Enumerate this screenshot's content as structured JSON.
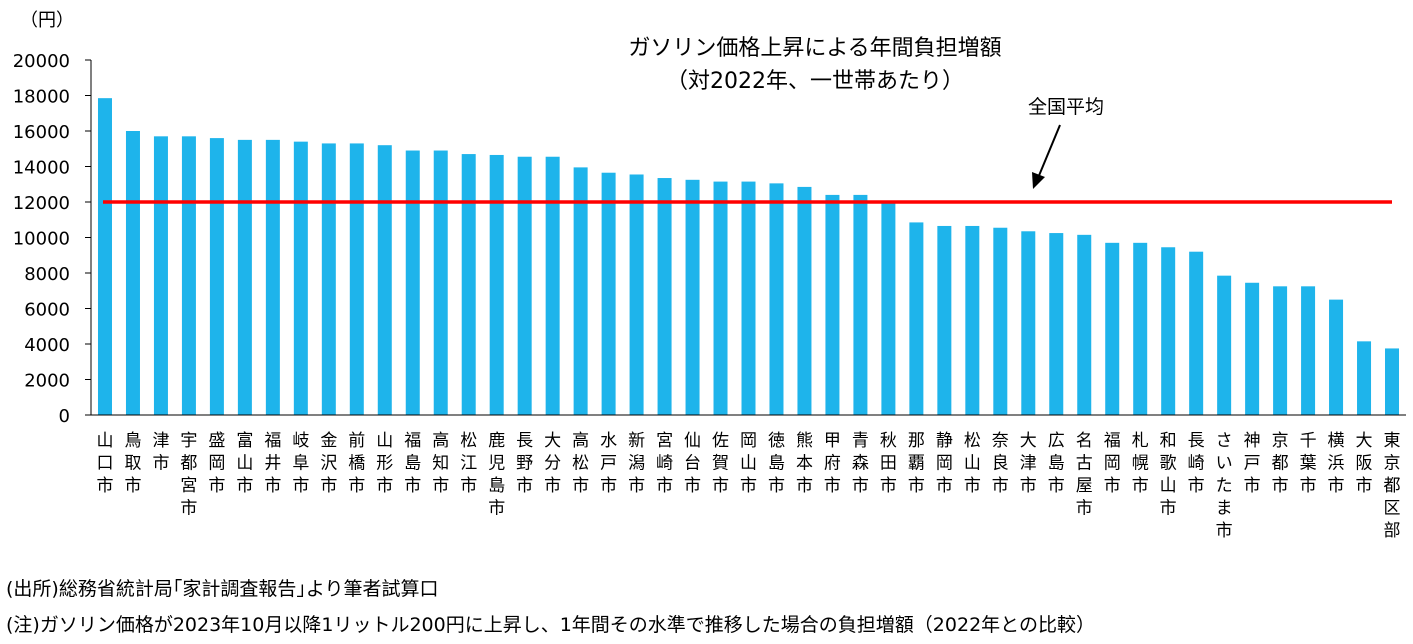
{
  "chart_data": {
    "type": "bar",
    "title": "ガソリン価格上昇による年間負担増額",
    "subtitle": "（対2022年、一世帯あたり）",
    "unit_label": "（円）",
    "ylim": [
      0,
      20000
    ],
    "yticks": [
      0,
      2000,
      4000,
      6000,
      8000,
      10000,
      12000,
      14000,
      16000,
      18000,
      20000
    ],
    "categories": [
      "山口市",
      "鳥取市",
      "津市",
      "宇都宮市",
      "盛岡市",
      "富山市",
      "福井市",
      "岐阜市",
      "金沢市",
      "前橋市",
      "山形市",
      "福島市",
      "高知市",
      "松江市",
      "鹿児島市",
      "長野市",
      "大分市",
      "高松市",
      "水戸市",
      "新潟市",
      "宮崎市",
      "仙台市",
      "佐賀市",
      "岡山市",
      "徳島市",
      "熊本市",
      "甲府市",
      "青森市",
      "秋田市",
      "那覇市",
      "静岡市",
      "松山市",
      "奈良市",
      "大津市",
      "広島市",
      "名古屋市",
      "福岡市",
      "札幌市",
      "和歌山市",
      "長崎市",
      "さいたま市",
      "神戸市",
      "京都市",
      "千葉市",
      "横浜市",
      "大阪市",
      "東京都区部"
    ],
    "values": [
      17850,
      16000,
      15700,
      15700,
      15600,
      15500,
      15500,
      15400,
      15300,
      15300,
      15200,
      14900,
      14900,
      14700,
      14650,
      14550,
      14550,
      13950,
      13650,
      13550,
      13350,
      13250,
      13150,
      13150,
      13050,
      12850,
      12400,
      12400,
      11950,
      10850,
      10650,
      10650,
      10550,
      10350,
      10250,
      10150,
      9700,
      9700,
      9450,
      9200,
      7850,
      7450,
      7250,
      7250,
      6500,
      4150,
      3750
    ],
    "series_color": "#1EB4EB",
    "reference_line": {
      "label": "全国平均",
      "value": 12000,
      "color": "#FF0000"
    }
  },
  "notes": {
    "source": "(出所)総務省統計局｢家計調査報告｣より筆者試算口",
    "footnote": "(注)ガソリン価格が2023年10月以降1リットル200円に上昇し、1年間その水準で推移した場合の負担増額（2022年との比較）"
  }
}
